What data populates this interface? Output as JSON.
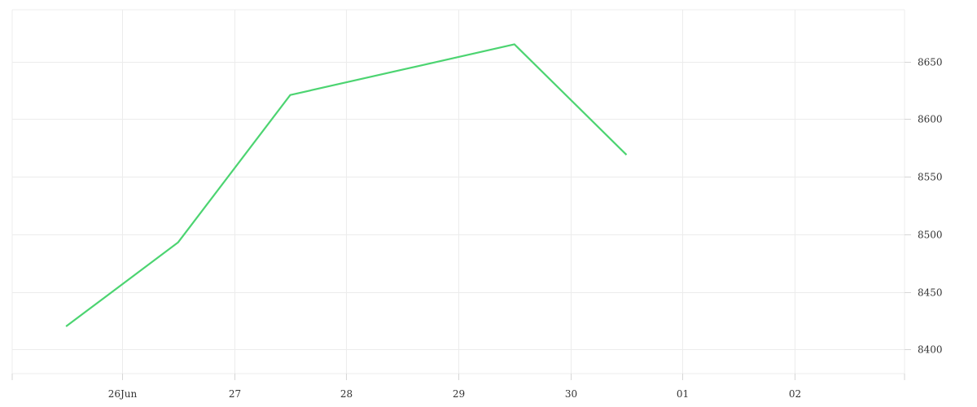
{
  "chart_data": {
    "type": "line",
    "title": "",
    "xlabel": "",
    "ylabel": "",
    "x_tick_labels": [
      "26Jun",
      "27",
      "28",
      "29",
      "30",
      "01",
      "02"
    ],
    "x_tick_positions": [
      1,
      2,
      3,
      4,
      5,
      6,
      7
    ],
    "xlim": [
      0.02,
      7.98
    ],
    "y_ticks": [
      8400,
      8450,
      8500,
      8550,
      8600,
      8650
    ],
    "ylim": [
      8379,
      8695
    ],
    "grid": true,
    "y_axis_side": "right",
    "series": [
      {
        "color": "#4cd471",
        "x": [
          0.5,
          1.5,
          2.5,
          3.5,
          4.5,
          5.5
        ],
        "values": [
          8420,
          8493,
          8621,
          8643,
          8665,
          8569
        ]
      }
    ]
  }
}
